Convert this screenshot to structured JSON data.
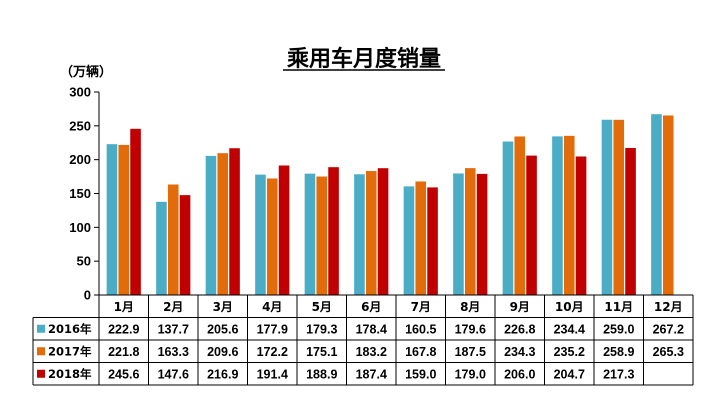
{
  "chart_data": {
    "type": "bar",
    "title": "乘用车月度销量",
    "ylabel": "（万辆）",
    "ylim": [
      0,
      300
    ],
    "yticks": [
      0,
      50,
      100,
      150,
      200,
      250,
      300
    ],
    "grid": false,
    "legend": "table-below",
    "categories": [
      "1月",
      "2月",
      "3月",
      "4月",
      "5月",
      "6月",
      "7月",
      "8月",
      "9月",
      "10月",
      "11月",
      "12月"
    ],
    "series": [
      {
        "name": "2016年",
        "color": "#4BACC6",
        "values": [
          222.9,
          137.7,
          205.6,
          177.9,
          179.3,
          178.4,
          160.5,
          179.6,
          226.8,
          234.4,
          259.0,
          267.2
        ],
        "labels": [
          "222.9",
          "137.7",
          "205.6",
          "177.9",
          "179.3",
          "178.4",
          "160.5",
          "179.6",
          "226.8",
          "234.4",
          "259.0",
          "267.2"
        ]
      },
      {
        "name": "2017年",
        "color": "#E36C0A",
        "values": [
          221.8,
          163.3,
          209.6,
          172.2,
          175.1,
          183.2,
          167.8,
          187.5,
          234.3,
          235.2,
          258.9,
          265.3
        ],
        "labels": [
          "221.8",
          "163.3",
          "209.6",
          "172.2",
          "175.1",
          "183.2",
          "167.8",
          "187.5",
          "234.3",
          "235.2",
          "258.9",
          "265.3"
        ]
      },
      {
        "name": "2018年",
        "color": "#C00000",
        "values": [
          245.6,
          147.6,
          216.9,
          191.4,
          188.9,
          187.4,
          159.0,
          179.0,
          206.0,
          204.7,
          217.3,
          null
        ],
        "labels": [
          "245.6",
          "147.6",
          "216.9",
          "191.4",
          "188.9",
          "187.4",
          "159.0",
          "179.0",
          "206.0",
          "204.7",
          "217.3",
          ""
        ]
      }
    ]
  }
}
